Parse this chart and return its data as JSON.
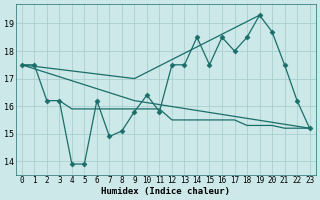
{
  "background_color": "#cce8e8",
  "grid_color": "#aacece",
  "line_color": "#1a6e6a",
  "xlabel": "Humidex (Indice chaleur)",
  "ylim": [
    13.5,
    19.7
  ],
  "xlim": [
    -0.5,
    23.5
  ],
  "yticks": [
    14,
    15,
    16,
    17,
    18,
    19
  ],
  "xticks": [
    0,
    1,
    2,
    3,
    4,
    5,
    6,
    7,
    8,
    9,
    10,
    11,
    12,
    13,
    14,
    15,
    16,
    17,
    18,
    19,
    20,
    21,
    22,
    23
  ],
  "series": [
    {
      "x": [
        0,
        1,
        2,
        3,
        4,
        5,
        6,
        7,
        8,
        9,
        10,
        11,
        12,
        13,
        14,
        15,
        16,
        17,
        18,
        19,
        20,
        21,
        22,
        23
      ],
      "y": [
        17.5,
        17.5,
        16.2,
        16.2,
        13.9,
        13.9,
        16.2,
        14.9,
        15.1,
        15.8,
        16.4,
        15.8,
        17.5,
        17.5,
        18.5,
        17.5,
        18.5,
        18.0,
        18.5,
        19.3,
        18.7,
        17.5,
        16.2,
        15.2
      ],
      "marker": "D",
      "ms": 2.5,
      "lw": 0.9
    },
    {
      "x": [
        0,
        9,
        23
      ],
      "y": [
        17.5,
        16.2,
        15.2
      ],
      "marker": null,
      "ms": 0,
      "lw": 0.9
    },
    {
      "x": [
        0,
        9,
        19
      ],
      "y": [
        17.5,
        17.0,
        19.3
      ],
      "marker": null,
      "ms": 0,
      "lw": 0.9
    },
    {
      "x": [
        3,
        4,
        5,
        6,
        7,
        8,
        9,
        10,
        11,
        12,
        13,
        14,
        15,
        16,
        17,
        18,
        19,
        20,
        21,
        22,
        23
      ],
      "y": [
        16.2,
        15.9,
        15.9,
        15.9,
        15.9,
        15.9,
        15.9,
        15.9,
        15.9,
        15.5,
        15.5,
        15.5,
        15.5,
        15.5,
        15.5,
        15.3,
        15.3,
        15.3,
        15.2,
        15.2,
        15.2
      ],
      "marker": null,
      "ms": 0,
      "lw": 0.9
    }
  ]
}
